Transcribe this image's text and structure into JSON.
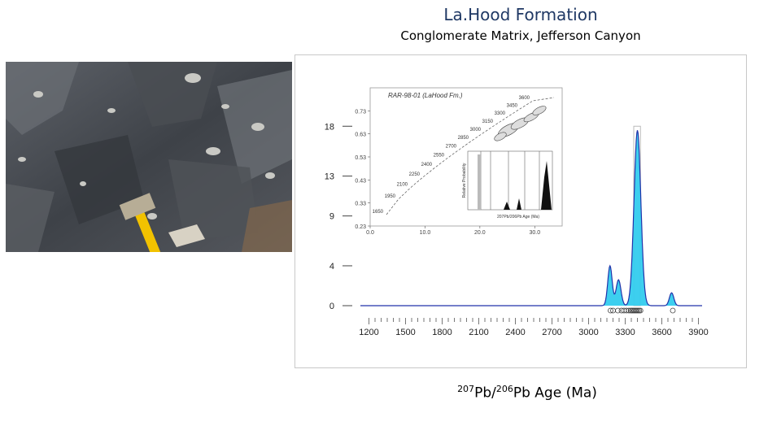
{
  "slide": {
    "title": "La.Hood Formation",
    "subtitle": "Conglomerate Matrix, Jefferson Canyon",
    "xaxis_caption": {
      "iso1_mass": "207",
      "iso1_el": "Pb/",
      "iso2_mass": "206",
      "iso2_el": "Pb Age (Ma)"
    }
  },
  "colors": {
    "kde_fill": "#33ccee",
    "kde_line": "#2233aa",
    "title_color": "#1f3864"
  },
  "photo": {
    "description_icon": "rock-outcrop-with-hammer-photo"
  },
  "chart_data": [
    {
      "type": "area",
      "subtype": "kernel-density-estimate",
      "title": "",
      "xlabel": "",
      "ylabel": "",
      "xlim": [
        1130,
        3930
      ],
      "ylim": [
        0,
        19
      ],
      "xticks": [
        1200,
        1500,
        1800,
        2100,
        2400,
        2700,
        3000,
        3300,
        3600,
        3900
      ],
      "yticks": [
        0,
        4,
        9,
        13,
        18
      ],
      "grid": false,
      "kde_peaks": [
        {
          "age": 3175,
          "height": 4.0,
          "sigma": 18
        },
        {
          "age": 3245,
          "height": 2.6,
          "sigma": 20
        },
        {
          "age": 3400,
          "height": 17.6,
          "sigma": 28
        },
        {
          "age": 3680,
          "height": 1.3,
          "sigma": 18
        }
      ],
      "histogram_bar": {
        "age_start": 3370,
        "age_end": 3425,
        "height": 18
      },
      "sample_points": [
        3180,
        3200,
        3240,
        3270,
        3290,
        3310,
        3330,
        3345,
        3355,
        3365,
        3375,
        3385,
        3395,
        3405,
        3415,
        3425,
        3690
      ]
    },
    {
      "type": "scatter",
      "subtype": "concordia-inset",
      "title": "RAR-98-01 (LaHood Fm.)",
      "xlabel": "",
      "ylabel": "",
      "xlim": [
        0,
        35
      ],
      "ylim": [
        0.23,
        0.83
      ],
      "xticks": [
        "0.0",
        "10.0",
        "20.0",
        "30.0"
      ],
      "yticks": [
        "0.23",
        "0.33",
        "0.43",
        "0.53",
        "0.63",
        "0.73"
      ],
      "concordia_age_labels": [
        "1650",
        "1950",
        "2100",
        "2250",
        "2400",
        "2550",
        "2700",
        "2850",
        "3000",
        "3150",
        "3300",
        "3450",
        "3600"
      ],
      "inset_histogram": {
        "xlabel": "207Pb/206Pb Age (Ma)",
        "ylabel": "Relative Probability"
      }
    }
  ]
}
